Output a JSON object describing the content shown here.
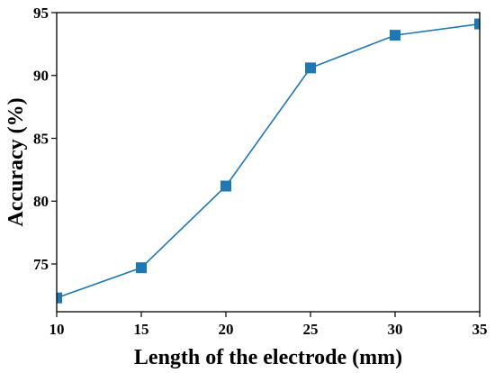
{
  "chart_data": {
    "type": "line",
    "title": "",
    "xlabel": "Length of the electrode (mm)",
    "ylabel": "Accuracy (%)",
    "x": [
      10,
      15,
      20,
      25,
      30,
      35
    ],
    "series": [
      {
        "values": [
          72.3,
          74.7,
          81.2,
          90.6,
          93.2,
          94.1
        ],
        "color": "#1f77b4",
        "marker": "square"
      }
    ],
    "xlim": [
      10,
      35
    ],
    "ylim": [
      71.2,
      95
    ],
    "xticks": [
      "10",
      "15",
      "20",
      "25",
      "30",
      "35"
    ],
    "yticks": [
      "75",
      "80",
      "85",
      "90",
      "95"
    ],
    "grid": false,
    "legend": "none"
  }
}
